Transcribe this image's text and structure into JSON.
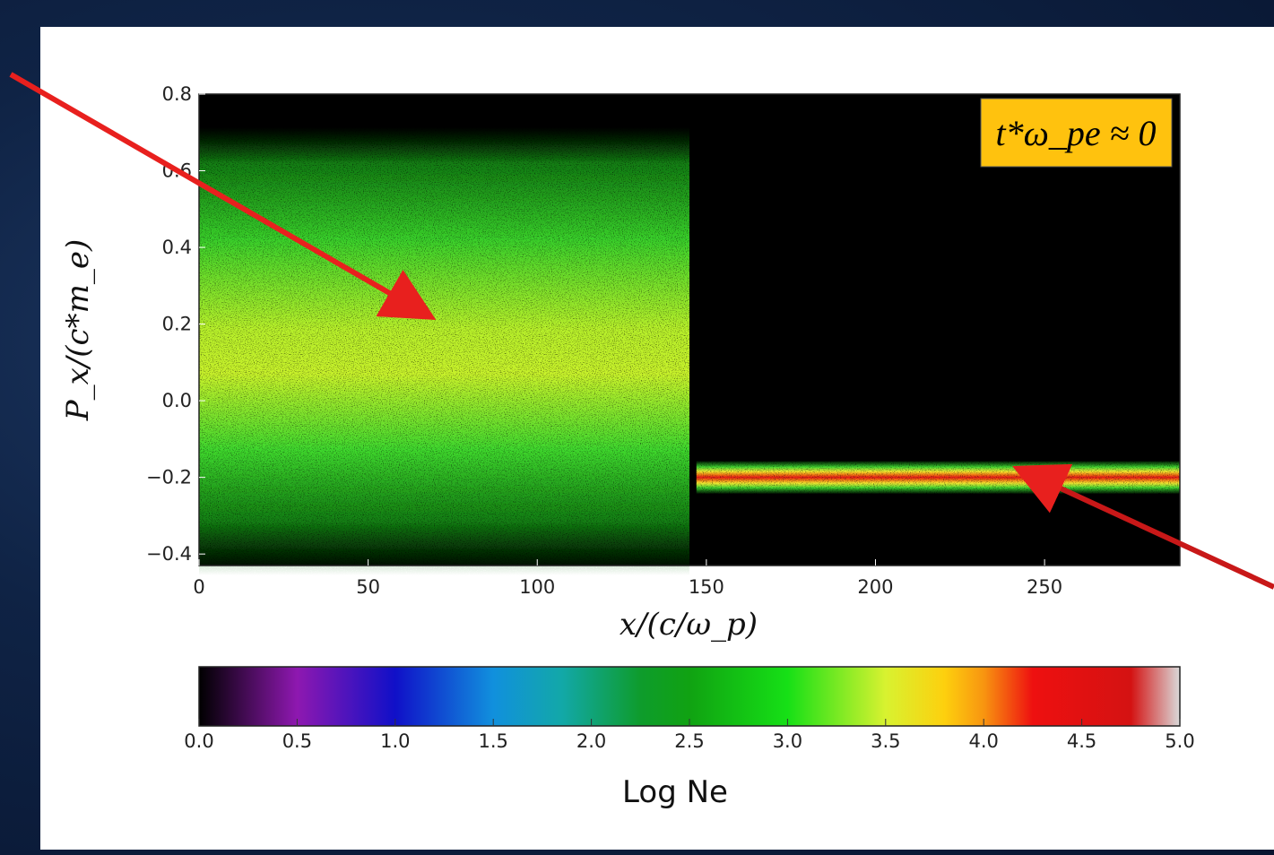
{
  "chart_data": {
    "type": "heatmap",
    "title": "",
    "xlabel": "x/(c/ω_p)",
    "ylabel": "P_x/(c*m_e)",
    "xlim": [
      0,
      290
    ],
    "ylim": [
      -0.43,
      0.8
    ],
    "x_ticks": [
      "0",
      "50",
      "100",
      "150",
      "200",
      "250"
    ],
    "y_ticks": [
      "−0.4",
      "−0.2",
      "0.0",
      "0.2",
      "0.4",
      "0.6",
      "0.8"
    ],
    "regions": [
      {
        "x_range": [
          0,
          145
        ],
        "center_momentum": 0.22,
        "spread": 0.26,
        "log_ne_peak": 3.4
      },
      {
        "x_range": [
          146,
          290
        ],
        "center_momentum": -0.2,
        "spread": 0.035,
        "log_ne_peak": 4.5
      }
    ],
    "annotation": "t*ω_pe ≈ 0",
    "colorbar": {
      "label": "Log Ne",
      "range": [
        0.0,
        5.0
      ],
      "ticks": [
        "0.0",
        "0.5",
        "1.0",
        "1.5",
        "2.0",
        "2.5",
        "3.0",
        "3.5",
        "4.0",
        "4.5",
        "5.0"
      ],
      "colormap": "nipy_spectral"
    },
    "grid": false,
    "arrow_color": "#e8201e",
    "annotation_box_color": "#ffc20e"
  }
}
